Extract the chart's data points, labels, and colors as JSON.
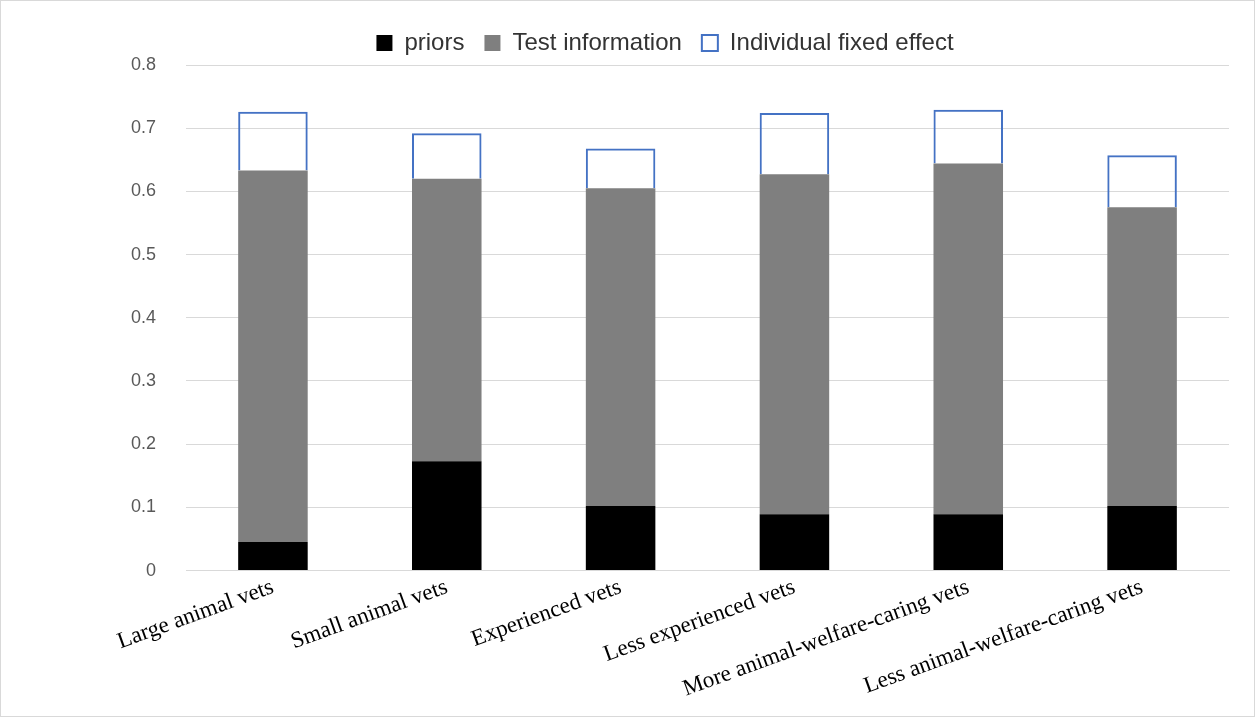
{
  "chart_data": {
    "type": "bar",
    "stacked": true,
    "categories": [
      "Large animal vets",
      "Small animal vets",
      "Experienced vets",
      "Less experienced vets",
      "More animal-welfare-caring vets",
      "Less animal-welfare-caring vets"
    ],
    "series": [
      {
        "name": "priors",
        "color": "#000000",
        "values": [
          0.045,
          0.173,
          0.102,
          0.089,
          0.089,
          0.102
        ]
      },
      {
        "name": "Test information",
        "color": "#7f7f7f",
        "values": [
          0.588,
          0.447,
          0.503,
          0.538,
          0.555,
          0.473
        ]
      },
      {
        "name": "Individual fixed effect",
        "color": "#4472c4",
        "values": [
          0.093,
          0.072,
          0.063,
          0.097,
          0.085,
          0.082
        ]
      }
    ],
    "ylim": [
      0,
      0.8
    ],
    "yticks": [
      0,
      0.1,
      0.2,
      0.3,
      0.4,
      0.5,
      0.6,
      0.7,
      0.8
    ],
    "grid": "y",
    "legend": "top"
  }
}
